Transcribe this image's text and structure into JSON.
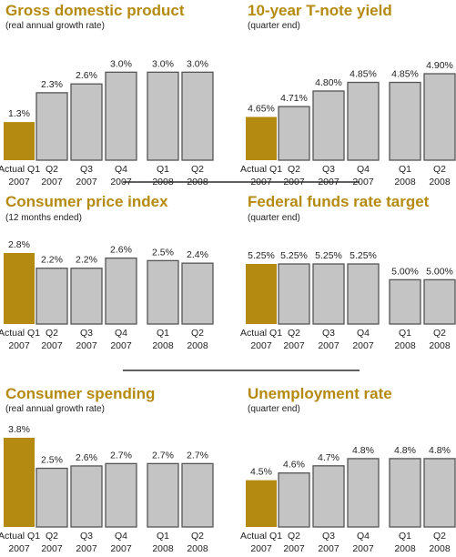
{
  "colors": {
    "title": "#b58a10",
    "actual": "#b58a10",
    "forecast": "#c4c4c4",
    "divider": "#000000"
  },
  "chart_data": [
    {
      "type": "bar",
      "title": "Gross domestic product",
      "subtitle": "(real annual growth rate)",
      "categories": [
        [
          "Actual Q1",
          "2007"
        ],
        [
          "Q2",
          "2007"
        ],
        [
          "Q3",
          "2007"
        ],
        [
          "Q4",
          "2007"
        ],
        [
          "Q1",
          "2008"
        ],
        [
          "Q2",
          "2008"
        ]
      ],
      "values": [
        1.3,
        2.3,
        2.6,
        3.0,
        3.0,
        3.0
      ],
      "labels": [
        "1.3%",
        "2.3%",
        "2.6%",
        "3.0%",
        "3.0%",
        "3.0%"
      ],
      "ylim": [
        0,
        3.6
      ]
    },
    {
      "type": "bar",
      "title": "10-year T-note yield",
      "subtitle": "(quarter end)",
      "categories": [
        [
          "Actual Q1",
          "2007"
        ],
        [
          "Q2",
          "2007"
        ],
        [
          "Q3",
          "2007"
        ],
        [
          "Q4",
          "2007"
        ],
        [
          "Q1",
          "2008"
        ],
        [
          "Q2",
          "2008"
        ]
      ],
      "values": [
        4.65,
        4.71,
        4.8,
        4.85,
        4.85,
        4.9
      ],
      "labels": [
        "4.65%",
        "4.71%",
        "4.80%",
        "4.85%",
        "4.85%",
        "4.90%"
      ],
      "ylim": [
        4.4,
        5.0
      ]
    },
    {
      "type": "bar",
      "title": "Consumer price index",
      "subtitle": "(12 months ended)",
      "categories": [
        [
          "Actual Q1",
          "2007"
        ],
        [
          "Q2",
          "2007"
        ],
        [
          "Q3",
          "2007"
        ],
        [
          "Q4",
          "2007"
        ],
        [
          "Q1",
          "2008"
        ],
        [
          "Q2",
          "2008"
        ]
      ],
      "values": [
        2.8,
        2.2,
        2.2,
        2.6,
        2.5,
        2.4
      ],
      "labels": [
        "2.8%",
        "2.2%",
        "2.2%",
        "2.6%",
        "2.5%",
        "2.4%"
      ],
      "ylim": [
        0,
        2.8
      ]
    },
    {
      "type": "bar",
      "title": "Federal funds rate target",
      "subtitle": "(quarter end)",
      "categories": [
        [
          "Actual Q1",
          "2007"
        ],
        [
          "Q2",
          "2007"
        ],
        [
          "Q3",
          "2007"
        ],
        [
          "Q4",
          "2007"
        ],
        [
          "Q1",
          "2008"
        ],
        [
          "Q2",
          "2008"
        ]
      ],
      "values": [
        5.25,
        5.25,
        5.25,
        5.25,
        5.0,
        5.0
      ],
      "labels": [
        "5.25%",
        "5.25%",
        "5.25%",
        "5.25%",
        "5.00%",
        "5.00%"
      ],
      "ylim": [
        4.3,
        5.25
      ]
    },
    {
      "type": "bar",
      "title": "Consumer spending",
      "subtitle": "(real annual growth rate)",
      "categories": [
        [
          "Actual Q1",
          "2007"
        ],
        [
          "Q2",
          "2007"
        ],
        [
          "Q3",
          "2007"
        ],
        [
          "Q4",
          "2007"
        ],
        [
          "Q1",
          "2008"
        ],
        [
          "Q2",
          "2008"
        ]
      ],
      "values": [
        3.8,
        2.5,
        2.6,
        2.7,
        2.7,
        2.7
      ],
      "labels": [
        "3.8%",
        "2.5%",
        "2.6%",
        "2.7%",
        "2.7%",
        "2.7%"
      ],
      "ylim": [
        0,
        3.8
      ]
    },
    {
      "type": "bar",
      "title": "Unemployment rate",
      "subtitle": "(quarter end)",
      "categories": [
        [
          "Actual Q1",
          "2007"
        ],
        [
          "Q2",
          "2007"
        ],
        [
          "Q3",
          "2007"
        ],
        [
          "Q4",
          "2007"
        ],
        [
          "Q1",
          "2008"
        ],
        [
          "Q2",
          "2008"
        ]
      ],
      "values": [
        4.5,
        4.6,
        4.7,
        4.8,
        4.8,
        4.8
      ],
      "labels": [
        "4.5%",
        "4.6%",
        "4.7%",
        "4.8%",
        "4.8%",
        "4.8%"
      ],
      "ylim": [
        3.85,
        4.9
      ]
    }
  ]
}
